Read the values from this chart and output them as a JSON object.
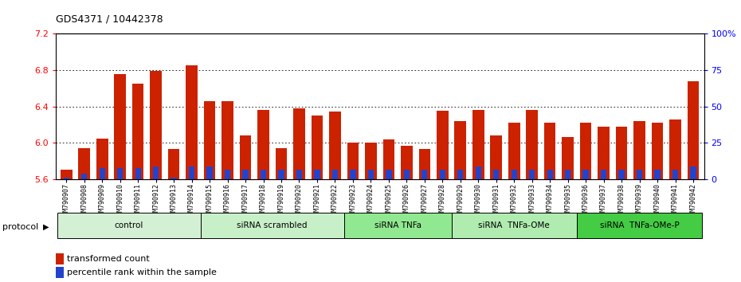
{
  "title": "GDS4371 / 10442378",
  "samples": [
    "GSM790907",
    "GSM790908",
    "GSM790909",
    "GSM790910",
    "GSM790911",
    "GSM790912",
    "GSM790913",
    "GSM790914",
    "GSM790915",
    "GSM790916",
    "GSM790917",
    "GSM790918",
    "GSM790919",
    "GSM790920",
    "GSM790921",
    "GSM790922",
    "GSM790923",
    "GSM790924",
    "GSM790925",
    "GSM790926",
    "GSM790927",
    "GSM790928",
    "GSM790929",
    "GSM790930",
    "GSM790931",
    "GSM790932",
    "GSM790933",
    "GSM790934",
    "GSM790935",
    "GSM790936",
    "GSM790937",
    "GSM790938",
    "GSM790939",
    "GSM790940",
    "GSM790941",
    "GSM790942"
  ],
  "red_values": [
    5.7,
    5.94,
    6.05,
    6.76,
    6.65,
    6.79,
    5.93,
    6.85,
    6.46,
    6.46,
    6.08,
    6.36,
    5.94,
    6.38,
    6.3,
    6.34,
    6.0,
    6.0,
    6.04,
    5.97,
    5.93,
    6.35,
    6.24,
    6.36,
    6.08,
    6.22,
    6.36,
    6.22,
    6.06,
    6.22,
    6.18,
    6.18,
    6.24,
    6.22,
    6.26,
    6.68
  ],
  "blue_values": [
    5.62,
    5.66,
    5.72,
    5.72,
    5.72,
    5.74,
    5.62,
    5.74,
    5.74,
    5.7,
    5.7,
    5.7,
    5.7,
    5.7,
    5.7,
    5.7,
    5.7,
    5.7,
    5.7,
    5.7,
    5.7,
    5.7,
    5.7,
    5.74,
    5.7,
    5.7,
    5.7,
    5.7,
    5.7,
    5.7,
    5.7,
    5.7,
    5.7,
    5.7,
    5.7,
    5.74
  ],
  "blue_tall": [
    false,
    false,
    false,
    false,
    false,
    false,
    false,
    false,
    false,
    false,
    false,
    false,
    false,
    false,
    false,
    false,
    false,
    false,
    false,
    false,
    false,
    false,
    false,
    false,
    false,
    false,
    false,
    false,
    false,
    false,
    false,
    false,
    false,
    false,
    false,
    false
  ],
  "groups": [
    {
      "label": "control",
      "start": 0,
      "end": 7,
      "color": "#d4f0d4"
    },
    {
      "label": "siRNA scrambled",
      "start": 8,
      "end": 15,
      "color": "#c8f0c8"
    },
    {
      "label": "siRNA TNFa",
      "start": 16,
      "end": 21,
      "color": "#90e890"
    },
    {
      "label": "siRNA  TNFa-OMe",
      "start": 22,
      "end": 28,
      "color": "#b0ecb0"
    },
    {
      "label": "siRNA  TNFa-OMe-P",
      "start": 29,
      "end": 35,
      "color": "#44cc44"
    }
  ],
  "ylim_left": [
    5.6,
    7.2
  ],
  "ylim_right": [
    0,
    100
  ],
  "yticks_left": [
    5.6,
    6.0,
    6.4,
    6.8,
    7.2
  ],
  "yticks_right": [
    0,
    25,
    50,
    75,
    100
  ],
  "ytick_labels_right": [
    "0",
    "25",
    "50",
    "75",
    "100%"
  ],
  "bar_color": "#cc2200",
  "blue_color": "#2244cc",
  "bar_width": 0.65
}
